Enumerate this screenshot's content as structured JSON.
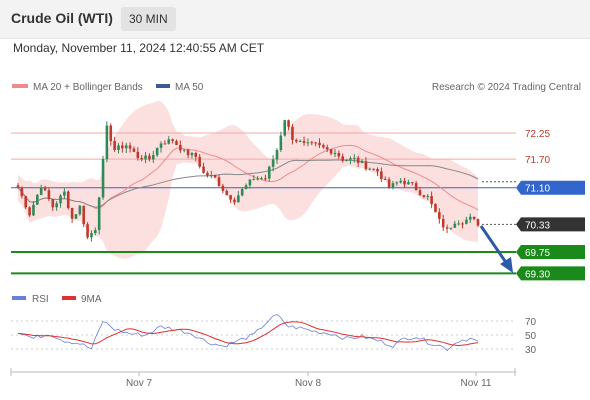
{
  "header": {
    "title": "Crude Oil (WTI)",
    "timeframe": "30 MIN"
  },
  "datetime": "Monday, November 11, 2024 12:40:55 AM CET",
  "legend": {
    "ma20_label": "MA 20 + Bollinger Bands",
    "ma50_label": "MA 50",
    "credit": "Research © 2024 Trading Central"
  },
  "rsi_legend": {
    "rsi_label": "RSI",
    "ma9_label": "9MA"
  },
  "colors": {
    "resistance": "#f4a7a7",
    "pivot": "#3366cc",
    "support": "#1a8a1a",
    "bb_fill": "#fcdcdc",
    "ma20": "#f08b8b",
    "ma50": "#888888",
    "candle_up": "#2e8b57",
    "candle_down": "#c0392b",
    "current": "#333333",
    "rsi": "#6a7fd8",
    "rsi_ma": "#e03030",
    "arrow": "#2a5aa8"
  },
  "chart_data": [
    {
      "type": "candlestick",
      "title": "Crude Oil (WTI)",
      "timeframe": "30 MIN",
      "x_labels": [
        "Nov 7",
        "Nov 8",
        "Nov 11"
      ],
      "ylim": [
        68.9,
        72.8
      ],
      "levels": [
        {
          "value": 72.25,
          "label": "72.25",
          "kind": "resistance"
        },
        {
          "value": 71.7,
          "label": "71.70",
          "kind": "resistance"
        },
        {
          "value": 71.1,
          "label": "71.10",
          "kind": "pivot"
        },
        {
          "value": 70.33,
          "label": "70.33",
          "kind": "current"
        },
        {
          "value": 69.75,
          "label": "69.75",
          "kind": "support"
        },
        {
          "value": 69.3,
          "label": "69.30",
          "kind": "support"
        }
      ],
      "anchors": [
        [
          0,
          71.1
        ],
        [
          3,
          70.55
        ],
        [
          6,
          71.15
        ],
        [
          9,
          70.7
        ],
        [
          12,
          71.0
        ],
        [
          14,
          70.45
        ],
        [
          16,
          70.7
        ],
        [
          18,
          70.05
        ],
        [
          20,
          70.25
        ],
        [
          23,
          72.35
        ],
        [
          25,
          71.9
        ],
        [
          28,
          72.0
        ],
        [
          31,
          71.75
        ],
        [
          34,
          71.7
        ],
        [
          37,
          72.05
        ],
        [
          40,
          72.1
        ],
        [
          43,
          71.85
        ],
        [
          46,
          71.75
        ],
        [
          48,
          71.4
        ],
        [
          51,
          71.3
        ],
        [
          54,
          70.95
        ],
        [
          56,
          70.85
        ],
        [
          58,
          71.05
        ],
        [
          61,
          71.3
        ],
        [
          64,
          71.3
        ],
        [
          67,
          71.9
        ],
        [
          69,
          72.55
        ],
        [
          71,
          72.15
        ],
        [
          74,
          72.0
        ],
        [
          77,
          72.0
        ],
        [
          80,
          71.9
        ],
        [
          82,
          71.85
        ],
        [
          84,
          71.7
        ],
        [
          87,
          71.7
        ],
        [
          90,
          71.55
        ],
        [
          93,
          71.45
        ],
        [
          96,
          71.1
        ],
        [
          99,
          71.25
        ],
        [
          102,
          71.15
        ],
        [
          104,
          71.0
        ],
        [
          106,
          70.9
        ],
        [
          109,
          70.4
        ],
        [
          111,
          70.2
        ],
        [
          113,
          70.4
        ],
        [
          115,
          70.4
        ],
        [
          117,
          70.45
        ],
        [
          119,
          70.35
        ]
      ],
      "series": [
        {
          "name": "MA 20 + Bollinger Bands"
        },
        {
          "name": "MA 50"
        }
      ]
    },
    {
      "type": "line",
      "title": "RSI",
      "ylim": [
        20,
        80
      ],
      "yticks": [
        70,
        50,
        30
      ],
      "anchors": [
        [
          0,
          55
        ],
        [
          4,
          45
        ],
        [
          8,
          52
        ],
        [
          12,
          42
        ],
        [
          16,
          38
        ],
        [
          19,
          30
        ],
        [
          22,
          70
        ],
        [
          25,
          58
        ],
        [
          29,
          52
        ],
        [
          33,
          50
        ],
        [
          37,
          62
        ],
        [
          41,
          58
        ],
        [
          45,
          52
        ],
        [
          49,
          40
        ],
        [
          53,
          34
        ],
        [
          57,
          42
        ],
        [
          61,
          50
        ],
        [
          65,
          72
        ],
        [
          67,
          78
        ],
        [
          70,
          62
        ],
        [
          73,
          60
        ],
        [
          77,
          55
        ],
        [
          81,
          52
        ],
        [
          85,
          45
        ],
        [
          89,
          48
        ],
        [
          93,
          42
        ],
        [
          97,
          35
        ],
        [
          100,
          45
        ],
        [
          103,
          48
        ],
        [
          106,
          40
        ],
        [
          109,
          35
        ],
        [
          111,
          30
        ],
        [
          114,
          42
        ],
        [
          117,
          45
        ],
        [
          119,
          40
        ]
      ],
      "series": [
        {
          "name": "RSI"
        },
        {
          "name": "9MA"
        }
      ]
    }
  ]
}
